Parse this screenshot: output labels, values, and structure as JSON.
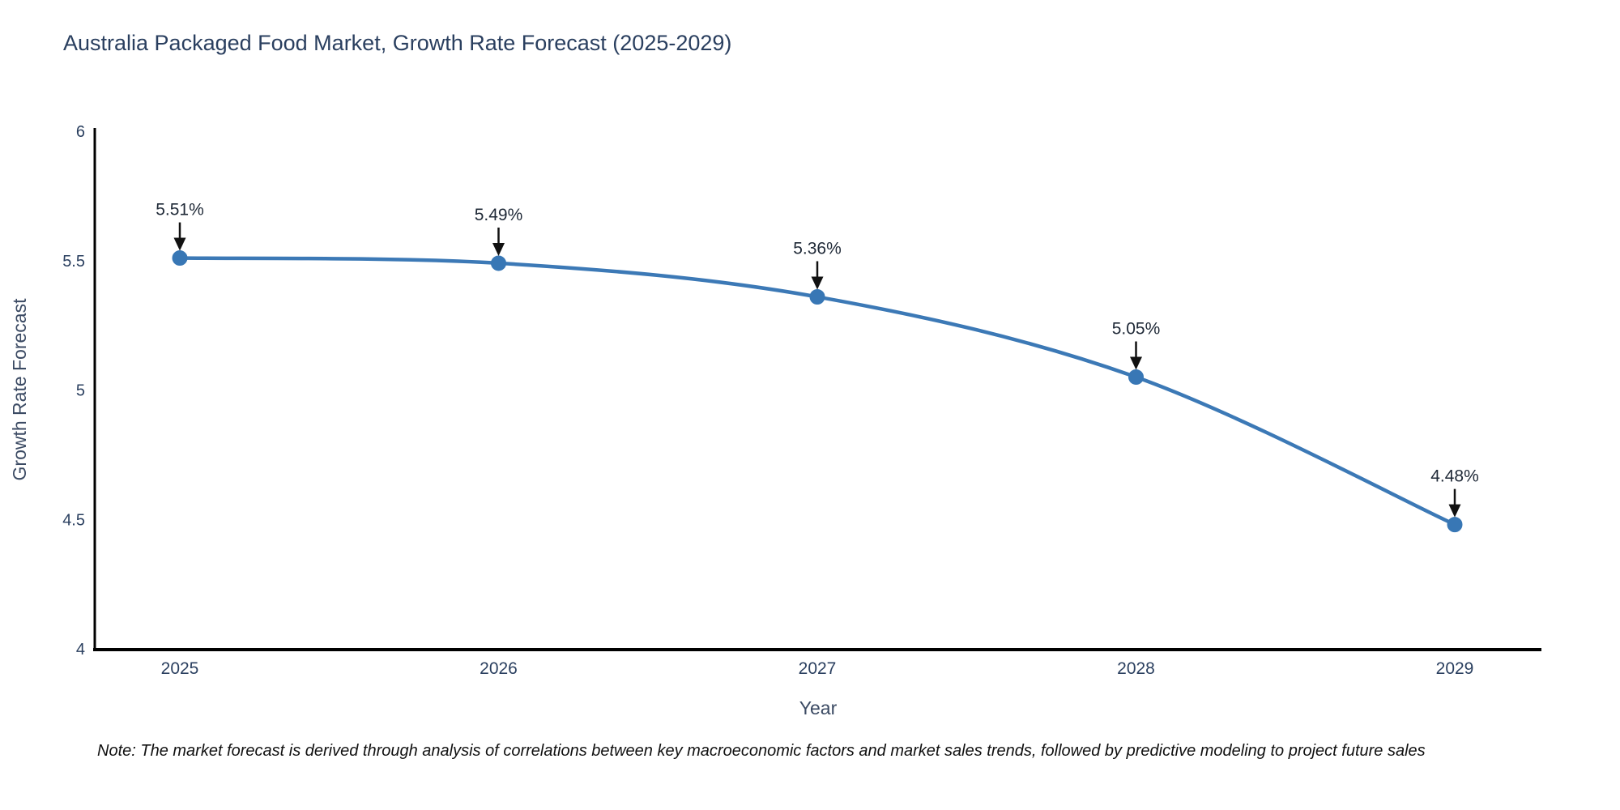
{
  "title": "Australia Packaged Food Market, Growth Rate Forecast (2025-2029)",
  "note": "Note: The market forecast is derived through analysis of correlations between key macroeconomic factors and market sales trends, followed by predictive modeling to project future sales",
  "chart_data": {
    "type": "line",
    "title": "Australia Packaged Food Market, Growth Rate Forecast (2025-2029)",
    "categories": [
      "2025",
      "2026",
      "2027",
      "2028",
      "2029"
    ],
    "values": [
      5.51,
      5.49,
      5.36,
      5.05,
      4.48
    ],
    "point_labels": [
      "5.51%",
      "5.49%",
      "5.36%",
      "5.05%",
      "4.48%"
    ],
    "xlabel": "Year",
    "ylabel": "Growth Rate Forecast",
    "ylim": [
      4,
      6
    ],
    "yticks": [
      4,
      4.5,
      5,
      5.5,
      6
    ],
    "ytick_labels": [
      "4",
      "4.5",
      "5",
      "5.5",
      "6"
    ],
    "grid": false,
    "legend": "none",
    "line_style": "spline",
    "annotations": "value labels with down arrows above each point"
  },
  "colors": {
    "line": "#3c79b6",
    "marker": "#3877b5",
    "axis": "#000000",
    "title_text": "#2a3f5f",
    "tick_text": "#2a3f5f",
    "axis_title_text": "#3b4a63",
    "annotation_text": "#1f2937",
    "arrow": "#111111",
    "note_text": "#111111",
    "background": "#ffffff"
  }
}
